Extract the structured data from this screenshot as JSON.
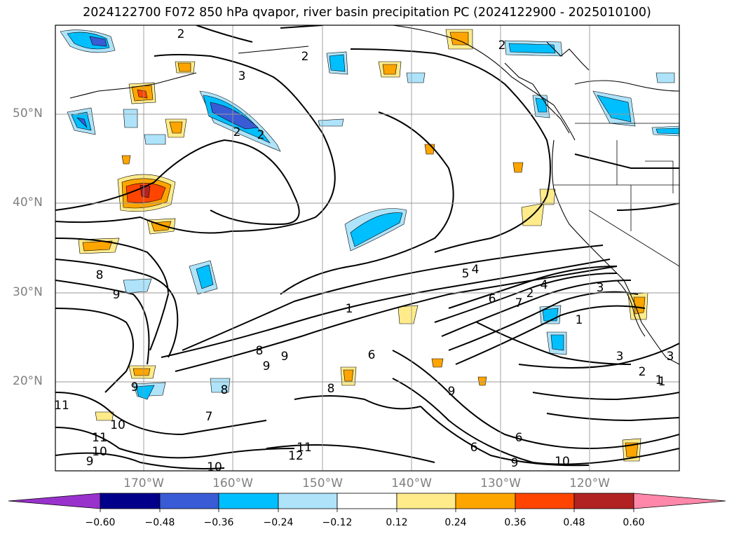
{
  "title": "2024122700 F072 850 hPa qvapor, river basin precipitation PC (2024122900 - 2025010100)",
  "map": {
    "lat_labels": [
      "50°N",
      "40°N",
      "30°N",
      "20°N"
    ],
    "lon_labels": [
      "170°W",
      "160°W",
      "150°W",
      "140°W",
      "130°W",
      "120°W"
    ],
    "grid": true,
    "contour_labels": [
      "2",
      "2",
      "3",
      "2",
      "2",
      "2",
      "4",
      "5",
      "1",
      "7",
      "6",
      "2",
      "4",
      "3",
      "1",
      "1",
      "8",
      "9",
      "8",
      "9",
      "6",
      "7",
      "8",
      "9",
      "10",
      "11",
      "12",
      "10",
      "11",
      "10",
      "9",
      "6",
      "9",
      "3",
      "2",
      "1",
      "3",
      "8",
      "9",
      "9",
      "10",
      "11",
      "6"
    ]
  },
  "colorbar": {
    "ticks": [
      "−0.60",
      "−0.48",
      "−0.36",
      "−0.24",
      "−0.12",
      "0.12",
      "0.24",
      "0.36",
      "0.48",
      "0.60"
    ],
    "colors": [
      "#9932cc",
      "#00008b",
      "#3a5bd6",
      "#00bfff",
      "#aee3fa",
      "#ffffff",
      "#ffeb8a",
      "#ffa500",
      "#ff4500",
      "#b22222",
      "#ff88aa"
    ]
  }
}
